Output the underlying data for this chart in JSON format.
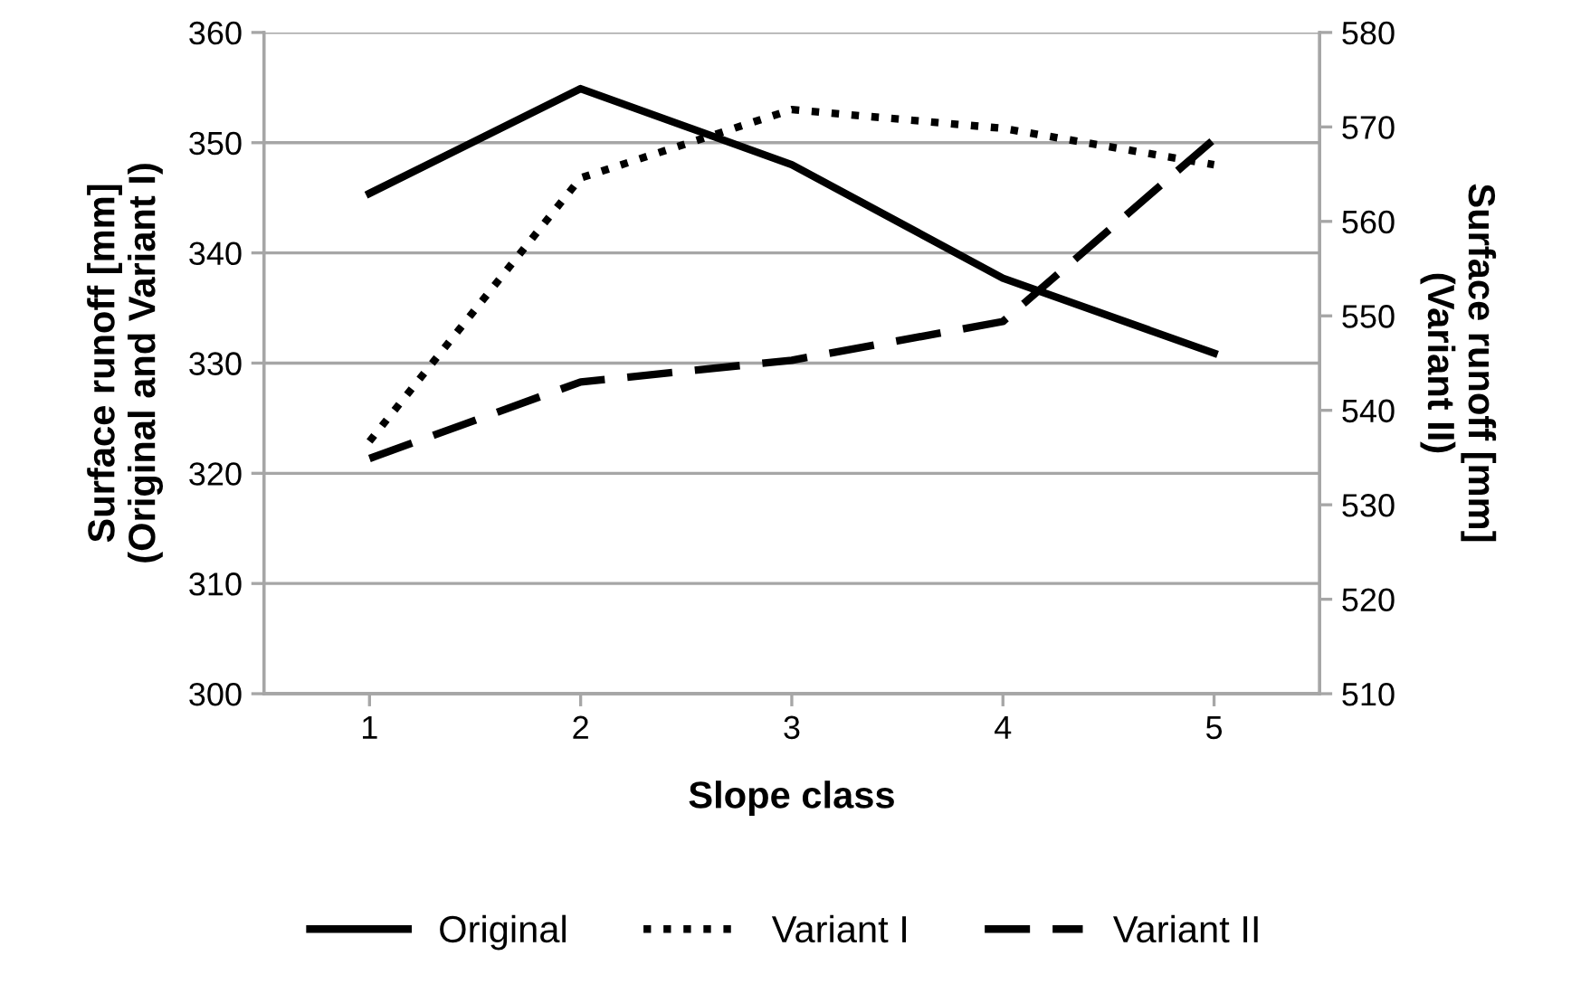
{
  "chart_data": {
    "type": "line",
    "xlabel": "Slope class",
    "ylabel": "Surface runoff [mm]\n(Original and Variant I)",
    "y2label": "Surface runoff [mm]\n(Variant II)",
    "x": [
      1,
      2,
      3,
      4,
      5
    ],
    "xlim": [
      0.5,
      5.5
    ],
    "xticks": [
      1,
      2,
      3,
      4,
      5
    ],
    "ylim": [
      300,
      360
    ],
    "yticks": [
      300,
      310,
      320,
      330,
      340,
      350,
      360
    ],
    "y2lim": [
      510,
      580
    ],
    "y2ticks": [
      510,
      520,
      530,
      540,
      550,
      560,
      570,
      580
    ],
    "grid": "y",
    "legend": "bottom",
    "marker": "none",
    "series": [
      {
        "name": "Original",
        "color": "#000000",
        "line_style": "solid",
        "values": [
          345.4,
          354.9,
          348.0,
          337.7,
          330.9
        ]
      },
      {
        "name": "Variant I",
        "color": "#000000",
        "line_style": "dotted",
        "values": [
          322.9,
          346.8,
          353.0,
          351.3,
          348.0
        ]
      },
      {
        "name": "Variant II",
        "color": "#000000",
        "line_style": "dashed",
        "axis": "y2",
        "values": [
          534.9,
          543.0,
          545.3,
          549.4,
          568.7
        ]
      }
    ]
  }
}
